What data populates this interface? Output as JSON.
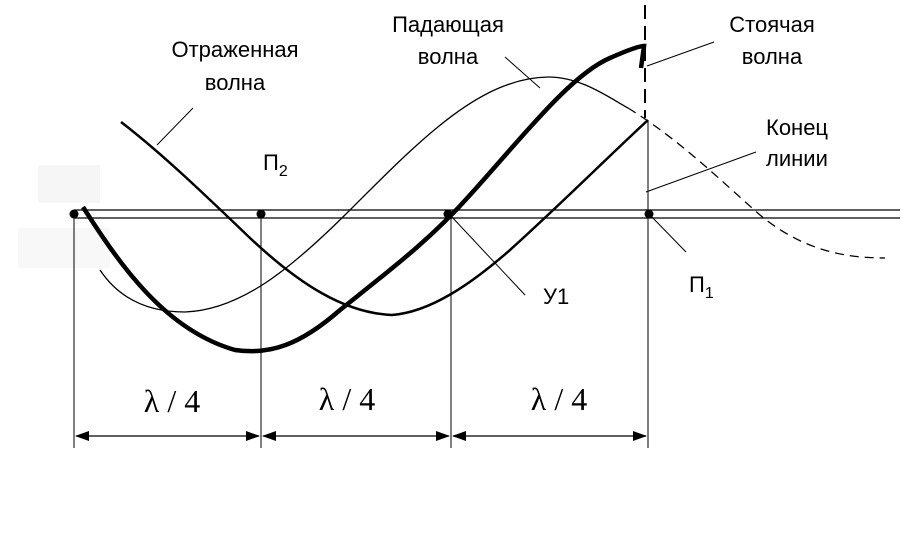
{
  "labels": {
    "reflected_line1": "Отраженная",
    "reflected_line2": "волна",
    "incident_line1": "Падающая",
    "incident_line2": "волна",
    "standing_line1": "Стоячая",
    "standing_line2": "волна",
    "end_line1": "Конец",
    "end_line2": "линии",
    "antinode_2_main": "П",
    "antinode_2_sub": "2",
    "antinode_1_main": "П",
    "antinode_1_sub": "1",
    "node_1": "У1"
  },
  "dimensions": [
    {
      "text": "λ / 4"
    },
    {
      "text": "λ / 4"
    },
    {
      "text": "λ / 4"
    }
  ]
}
